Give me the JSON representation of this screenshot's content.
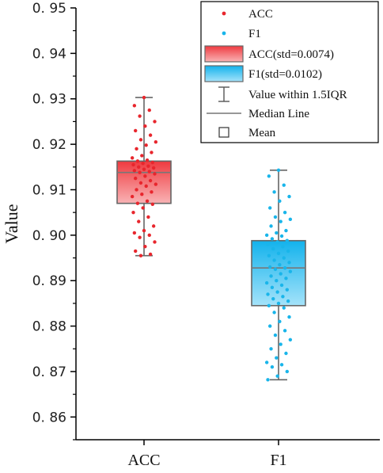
{
  "chart_data": {
    "type": "box",
    "ylabel": "Value",
    "xlabel": "",
    "ylim": [
      0.855,
      0.95
    ],
    "yticks": [
      0.86,
      0.87,
      0.88,
      0.89,
      0.9,
      0.91,
      0.92,
      0.93,
      0.94,
      0.95
    ],
    "ytick_labels": [
      "0. 86",
      "0. 87",
      "0. 88",
      "0. 89",
      "0. 90",
      "0. 91",
      "0. 92",
      "0. 93",
      "0. 94",
      "0. 95"
    ],
    "categories": [
      "ACC",
      "F1"
    ],
    "series": [
      {
        "name": "ACC",
        "box_label": "ACC(std=0.0074)",
        "color": "#e8262d",
        "box_top_color": "#ef3a3f",
        "box_bottom_color": "#f9b3b5",
        "whisker_low": 0.8955,
        "q1": 0.907,
        "median": 0.9138,
        "q3": 0.9163,
        "whisker_high": 0.9303,
        "points": [
          0.9303,
          0.9285,
          0.9275,
          0.9262,
          0.925,
          0.924,
          0.923,
          0.922,
          0.921,
          0.9205,
          0.9198,
          0.919,
          0.9182,
          0.9175,
          0.917,
          0.9165,
          0.9163,
          0.916,
          0.9158,
          0.9155,
          0.9152,
          0.915,
          0.9148,
          0.9145,
          0.9142,
          0.914,
          0.9138,
          0.9135,
          0.913,
          0.9125,
          0.912,
          0.9115,
          0.9112,
          0.9108,
          0.91,
          0.9095,
          0.909,
          0.9085,
          0.9075,
          0.907,
          0.9068,
          0.906,
          0.905,
          0.904,
          0.903,
          0.902,
          0.901,
          0.9005,
          0.9,
          0.8995,
          0.8985,
          0.8975,
          0.8965,
          0.8958,
          0.8955
        ]
      },
      {
        "name": "F1",
        "box_label": "F1(std=0.0102)",
        "color": "#19b5ea",
        "box_top_color": "#12b2ec",
        "box_bottom_color": "#a5e3fa",
        "whisker_low": 0.8682,
        "q1": 0.8845,
        "median": 0.8928,
        "q3": 0.8988,
        "whisker_high": 0.9143,
        "points": [
          0.9143,
          0.913,
          0.911,
          0.9095,
          0.9085,
          0.9075,
          0.906,
          0.905,
          0.904,
          0.9035,
          0.903,
          0.902,
          0.901,
          0.9005,
          0.9,
          0.8998,
          0.8992,
          0.8988,
          0.8985,
          0.898,
          0.8975,
          0.897,
          0.8965,
          0.896,
          0.8955,
          0.895,
          0.8945,
          0.894,
          0.8935,
          0.893,
          0.8928,
          0.8925,
          0.892,
          0.8915,
          0.891,
          0.8905,
          0.89,
          0.8895,
          0.889,
          0.8885,
          0.888,
          0.8875,
          0.887,
          0.8865,
          0.886,
          0.8855,
          0.885,
          0.8845,
          0.884,
          0.883,
          0.882,
          0.881,
          0.88,
          0.879,
          0.878,
          0.877,
          0.876,
          0.875,
          0.874,
          0.873,
          0.872,
          0.8715,
          0.871,
          0.87,
          0.869,
          0.8682
        ]
      }
    ],
    "legend": {
      "position": "top-right",
      "items": [
        {
          "kind": "points",
          "label": "ACC",
          "color": "#e8262d"
        },
        {
          "kind": "points",
          "label": "F1",
          "color": "#19b5ea"
        },
        {
          "kind": "box",
          "label": "ACC(std=0.0074)",
          "color": "#e8262d"
        },
        {
          "kind": "box",
          "label": "F1(std=0.0102)",
          "color": "#19b5ea"
        },
        {
          "kind": "whisker",
          "label": "Value within 1.5IQR"
        },
        {
          "kind": "median",
          "label": "Median Line"
        },
        {
          "kind": "mean",
          "label": "Mean"
        }
      ]
    }
  }
}
